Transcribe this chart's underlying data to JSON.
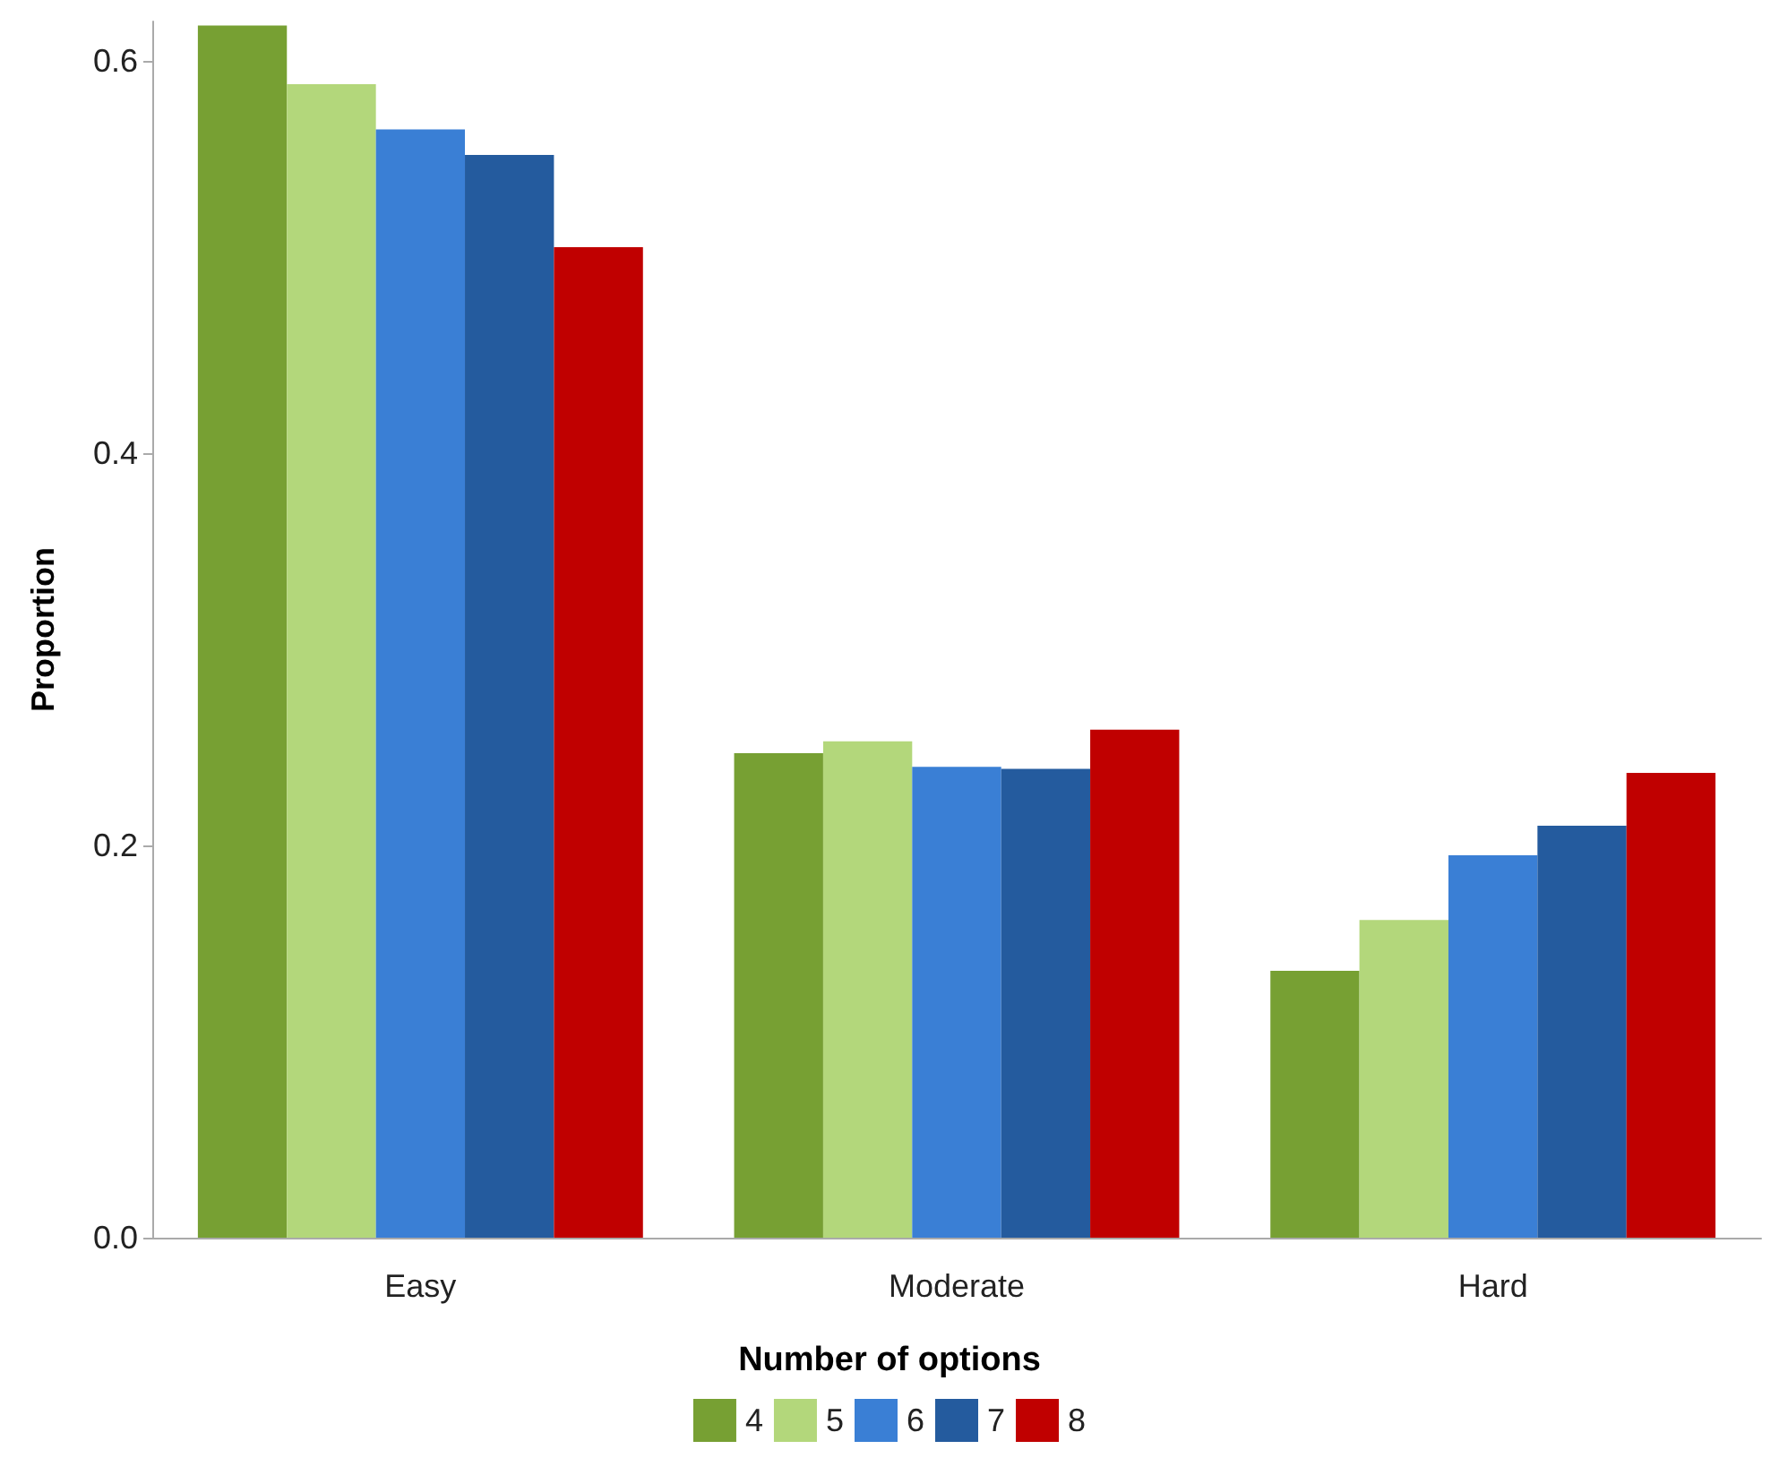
{
  "chart_data": {
    "type": "bar",
    "ylabel": "Proportion",
    "legend_title": "Number of options",
    "legend": "bottom",
    "grid": false,
    "categories": [
      "Easy",
      "Moderate",
      "Hard"
    ],
    "series": [
      {
        "name": "4",
        "color": "#77a033",
        "values": [
          0.618,
          0.247,
          0.136
        ]
      },
      {
        "name": "5",
        "color": "#b3d77b",
        "values": [
          0.588,
          0.253,
          0.162
        ]
      },
      {
        "name": "6",
        "color": "#3a7fd5",
        "values": [
          0.565,
          0.24,
          0.195
        ]
      },
      {
        "name": "7",
        "color": "#245b9e",
        "values": [
          0.552,
          0.239,
          0.21
        ]
      },
      {
        "name": "8",
        "color": "#c00000",
        "values": [
          0.505,
          0.259,
          0.237
        ]
      }
    ],
    "ylim": [
      0,
      0.62
    ],
    "yticks": [
      {
        "value": 0,
        "label": "0.0"
      },
      {
        "value": 0.2,
        "label": "0.2"
      },
      {
        "value": 0.4,
        "label": "0.4"
      },
      {
        "value": 0.6,
        "label": "0.6"
      }
    ]
  }
}
